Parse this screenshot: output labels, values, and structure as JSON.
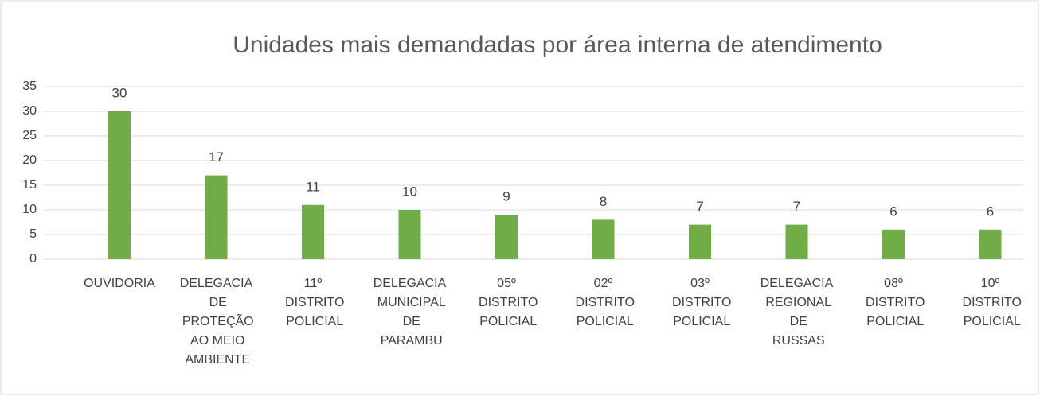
{
  "chart_data": {
    "type": "bar",
    "title": "Unidades mais demandadas por área interna de atendimento",
    "categories": [
      "OUVIDORIA",
      "DELEGACIA DE PROTEÇÃO AO MEIO AMBIENTE",
      "11º DISTRITO POLICIAL",
      "DELEGACIA MUNICIPAL DE PARAMBU",
      "05º DISTRITO POLICIAL",
      "02º DISTRITO POLICIAL",
      "03º DISTRITO POLICIAL",
      "DELEGACIA REGIONAL DE RUSSAS",
      "08º DISTRITO POLICIAL",
      "10º DISTRITO POLICIAL"
    ],
    "values": [
      30,
      17,
      11,
      10,
      9,
      8,
      7,
      7,
      6,
      6
    ],
    "color": "#70ad47",
    "ylim": [
      0,
      35
    ],
    "yticks": [
      0,
      5,
      10,
      15,
      20,
      25,
      30,
      35
    ],
    "grid": true
  }
}
